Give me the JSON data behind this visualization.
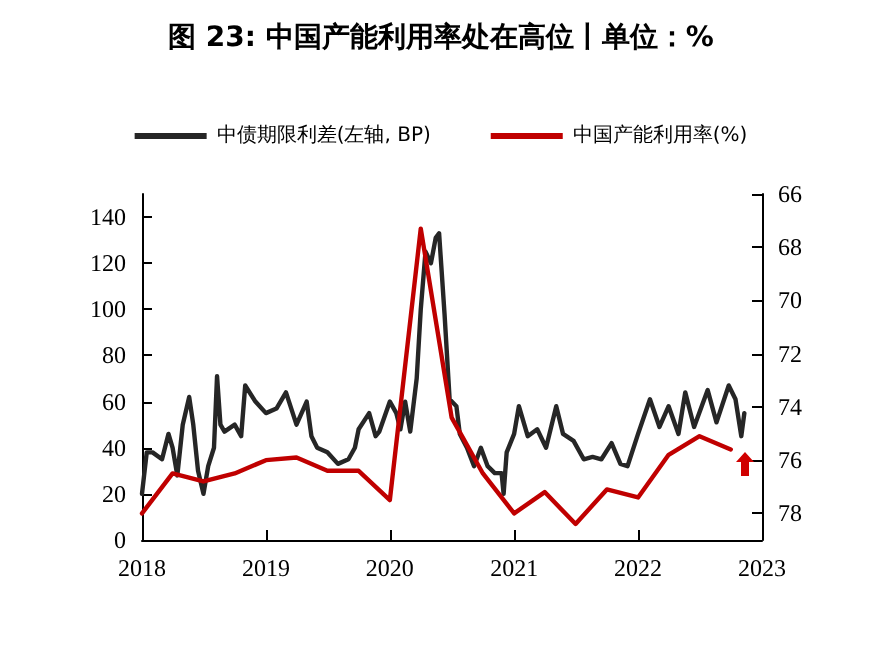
{
  "chart_data": {
    "type": "line",
    "title": "图 23: 中国产能利用率处在高位丨单位：%",
    "xlim": [
      "2018-01-01",
      "2023-01-01"
    ],
    "xticks": [
      "2018",
      "2019",
      "2020",
      "2021",
      "2022",
      "2023"
    ],
    "ylim": [
      0,
      150
    ],
    "yticks": [
      0,
      20,
      40,
      60,
      80,
      100,
      120,
      140
    ],
    "y2lim": [
      79,
      66
    ],
    "y2ticks": [
      66,
      68,
      70,
      72,
      74,
      76,
      78
    ],
    "legend": "top",
    "grid": false,
    "marker": "none",
    "line_style": "solid",
    "series": [
      {
        "name": "中债期限利差(左轴, BP)",
        "color": "#262626",
        "x": [
          "2018-01-01",
          "2018-01-15",
          "2018-02-01",
          "2018-03-01",
          "2018-03-20",
          "2018-04-01",
          "2018-04-15",
          "2018-05-01",
          "2018-05-20",
          "2018-06-01",
          "2018-06-15",
          "2018-07-01",
          "2018-07-15",
          "2018-08-01",
          "2018-08-10",
          "2018-08-20",
          "2018-09-01",
          "2018-10-01",
          "2018-10-20",
          "2018-11-01",
          "2018-12-01",
          "2019-01-01",
          "2019-02-01",
          "2019-03-01",
          "2019-04-01",
          "2019-05-01",
          "2019-05-15",
          "2019-06-01",
          "2019-07-01",
          "2019-08-01",
          "2019-09-01",
          "2019-09-20",
          "2019-10-01",
          "2019-11-01",
          "2019-11-20",
          "2019-12-01",
          "2020-01-01",
          "2020-01-20",
          "2020-02-01",
          "2020-02-15",
          "2020-03-01",
          "2020-03-20",
          "2020-04-01",
          "2020-04-15",
          "2020-05-01",
          "2020-05-15",
          "2020-05-25",
          "2020-06-10",
          "2020-06-25",
          "2020-07-15",
          "2020-07-25",
          "2020-08-15",
          "2020-09-05",
          "2020-09-25",
          "2020-10-15",
          "2020-11-05",
          "2020-11-25",
          "2020-12-01",
          "2020-12-10",
          "2021-01-01",
          "2021-01-15",
          "2021-02-10",
          "2021-03-10",
          "2021-04-05",
          "2021-05-05",
          "2021-05-25",
          "2021-06-25",
          "2021-07-25",
          "2021-08-20",
          "2021-09-15",
          "2021-10-15",
          "2021-11-10",
          "2021-12-01",
          "2022-01-01",
          "2022-02-05",
          "2022-03-05",
          "2022-04-01",
          "2022-04-30",
          "2022-05-20",
          "2022-06-15",
          "2022-07-25",
          "2022-08-20",
          "2022-09-25",
          "2022-10-15",
          "2022-11-01",
          "2022-11-10"
        ],
        "values": [
          20,
          38,
          38,
          35,
          46,
          40,
          28,
          50,
          62,
          50,
          30,
          20,
          32,
          40,
          71,
          50,
          47,
          50,
          45,
          67,
          60,
          55,
          57,
          64,
          50,
          60,
          45,
          40,
          38,
          33,
          35,
          40,
          48,
          55,
          45,
          47,
          60,
          55,
          48,
          60,
          47,
          70,
          100,
          125,
          120,
          131,
          133,
          98,
          61,
          58,
          46,
          40,
          32,
          40,
          32,
          29,
          29,
          20,
          38,
          46,
          58,
          45,
          48,
          40,
          58,
          46,
          43,
          35,
          36,
          35,
          42,
          33,
          32,
          46,
          61,
          49,
          58,
          46,
          64,
          49,
          65,
          51,
          67,
          61,
          45,
          55
        ]
      },
      {
        "name": "中国产能利用率(%)",
        "color": "#c00000",
        "axis": "y2",
        "x": [
          "2018-01",
          "2018-04",
          "2018-07",
          "2018-10",
          "2019-01",
          "2019-04",
          "2019-07",
          "2019-10",
          "2020-01",
          "2020-04",
          "2020-07",
          "2020-10",
          "2021-01",
          "2021-04",
          "2021-07",
          "2021-10",
          "2022-01",
          "2022-04",
          "2022-07",
          "2022-10"
        ],
        "values": [
          78.0,
          76.5,
          76.8,
          76.5,
          76.0,
          75.9,
          76.4,
          76.4,
          77.5,
          67.3,
          74.4,
          76.5,
          78.0,
          77.2,
          78.4,
          77.1,
          77.4,
          75.8,
          75.1,
          75.6
        ]
      }
    ]
  }
}
